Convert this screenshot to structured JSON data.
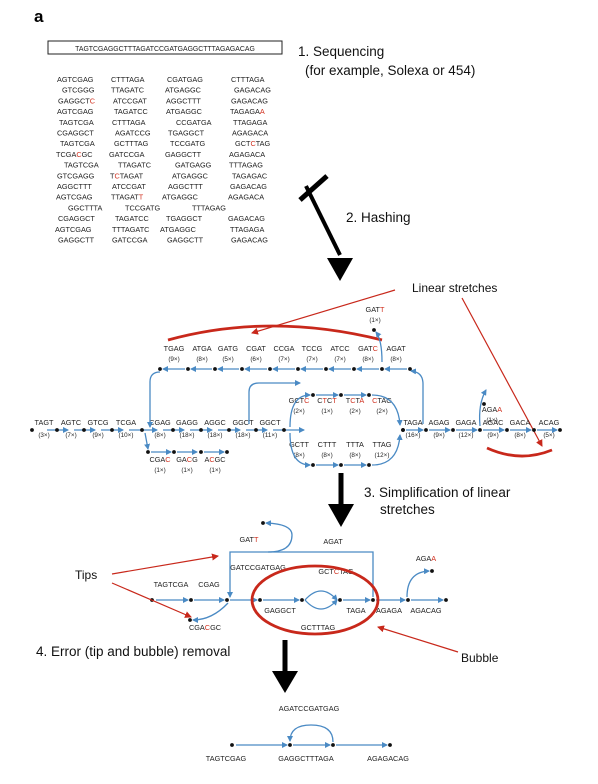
{
  "panel_label": "a",
  "genome": "TAGTCGAGGCTTTAGATCCGATGAGGCTTTAGAGACAG",
  "steps": {
    "s1_line1": "1. Sequencing",
    "s1_line2": "(for example, Solexa or 454)",
    "s2": "2. Hashing",
    "s3_line1": "3. Simplification of linear",
    "s3_line2": "stretches",
    "s4": "4. Error (tip and bubble) removal"
  },
  "annotations": {
    "linear_stretches": "Linear stretches",
    "tips": "Tips",
    "bubble": "Bubble"
  },
  "reads": [
    [
      "AGTCGAG",
      "CTTTAGA",
      "CGATGAG",
      "CTTTAGA"
    ],
    [
      "GTCGGG",
      "TTAGATC",
      "ATGAGGC",
      "GAGACAG"
    ],
    [
      "GAGGCTC",
      "ATCCGAT",
      "AGGCTTT",
      "GAGACAG"
    ],
    [
      "AGTCGAG",
      "TAGATCC",
      "ATGAGGC",
      "TAGAGAA"
    ],
    [
      "TAGTCGA",
      "CTTTAGA",
      "CCGATGA",
      "TTAGAGA"
    ],
    [
      "CGAGGCT",
      "AGATCCG",
      "TGAGGCT",
      "AGAGACA"
    ],
    [
      "TAGTCGA",
      "GCTTTAG",
      "TCCGATG",
      "GCTCTAG"
    ],
    [
      "TCGACGC",
      "GATCCGA",
      "GAGGCTT",
      "AGAGACA"
    ],
    [
      "TAGTCGA",
      "TTAGATC",
      "GATGAGG",
      "TTTAGAG"
    ],
    [
      "GTCGAGG",
      "TCTAGAT",
      "ATGAGGC",
      "TAGAGAC"
    ],
    [
      "AGGCTTT",
      "ATCCGAT",
      "AGGCTTT",
      "GAGACAG"
    ],
    [
      "AGTCGAG",
      "TTAGATT",
      "ATGAGGC",
      "AGAGACA"
    ],
    [
      "GGCTTTA",
      "TCCGATG",
      "TTTAGAG"
    ],
    [
      "CGAGGCT",
      "TAGATCC",
      "TGAGGCT",
      "GAGACAG"
    ],
    [
      "AGTCGAG",
      "TTTAGATC",
      "ATGAGGC",
      "TTAGAGA"
    ],
    [
      "GAGGCTT",
      "GATCCGA",
      "GAGGCTT",
      "GAGACAG"
    ]
  ],
  "graph": {
    "main": [
      {
        "seq": "TAGT",
        "count": "(3×)"
      },
      {
        "seq": "AGTC",
        "count": "(7×)"
      },
      {
        "seq": "GTCG",
        "count": "(9×)"
      },
      {
        "seq": "TCGA",
        "count": "(10×)"
      },
      {
        "seq": "CGAG",
        "count": "(8×)"
      },
      {
        "seq": "GAGG",
        "count": "(18×)"
      },
      {
        "seq": "AGGC",
        "count": "(18×)"
      },
      {
        "seq": "GGCT",
        "count": "(18×)"
      },
      {
        "seq": "GGCT",
        "count": "(11×)"
      }
    ],
    "upper": [
      {
        "seq": "TGAG",
        "count": "(9×)"
      },
      {
        "seq": "ATGA",
        "count": "(8×)"
      },
      {
        "seq": "GATG",
        "count": "(5×)"
      },
      {
        "seq": "CGAT",
        "count": "(6×)"
      },
      {
        "seq": "CCGA",
        "count": "(7×)"
      },
      {
        "seq": "TCCG",
        "count": "(7×)"
      },
      {
        "seq": "ATCC",
        "count": "(7×)"
      },
      {
        "seq": "GATC",
        "count": "(8×)"
      },
      {
        "seq": "AGAT",
        "count": "(8×)"
      }
    ],
    "gatt": {
      "seq": "GATT",
      "count": "(1×)"
    },
    "bubble_upper": [
      {
        "seq": "GCTC",
        "count": "(2×)"
      },
      {
        "seq": "CTCT",
        "count": "(1×)"
      },
      {
        "seq": "TCTA",
        "count": "(2×)"
      },
      {
        "seq": "CTAG",
        "count": "(2×)"
      }
    ],
    "bubble_lower": [
      {
        "seq": "GCTT",
        "count": "(8×)"
      },
      {
        "seq": "CTTT",
        "count": "(8×)"
      },
      {
        "seq": "TTTA",
        "count": "(8×)"
      },
      {
        "seq": "TTAG",
        "count": "(12×)"
      }
    ],
    "right": [
      {
        "seq": "TAGA",
        "count": "(16×)"
      },
      {
        "seq": "AGAG",
        "count": "(9×)"
      },
      {
        "seq": "GAGA",
        "count": "(12×)"
      },
      {
        "seq": "AGAC",
        "count": "(9×)"
      },
      {
        "seq": "GACA",
        "count": "(8×)"
      },
      {
        "seq": "ACAG",
        "count": "(5×)"
      }
    ],
    "agaa": {
      "seq": "AGAA",
      "count": "(1×)"
    },
    "tip_lower": [
      {
        "seq": "CGAC",
        "count": "(1×)"
      },
      {
        "seq": "GACG",
        "count": "(1×)"
      },
      {
        "seq": "ACGC",
        "count": "(1×)"
      }
    ]
  },
  "simplified": {
    "gatt": "GATT",
    "agat": "AGAT",
    "gatccgatgag": "GATCCGATGAG",
    "gctctag": "GCTCTAG",
    "agaa": "AGAA",
    "tagtcga": "TAGTCGA",
    "cgag": "CGAG",
    "gaggct": "GAGGCT",
    "taga": "TAGA",
    "agaga": "AGAGA",
    "agacag": "AGACAG",
    "gcttag": "GCTTTAG",
    "cgacgc": "CGACGC"
  },
  "final": {
    "top": "AGATCCGATGAG",
    "left": "TAGTCGAG",
    "middle": "GAGGCTTTAGA",
    "right": "AGAGACAG"
  }
}
